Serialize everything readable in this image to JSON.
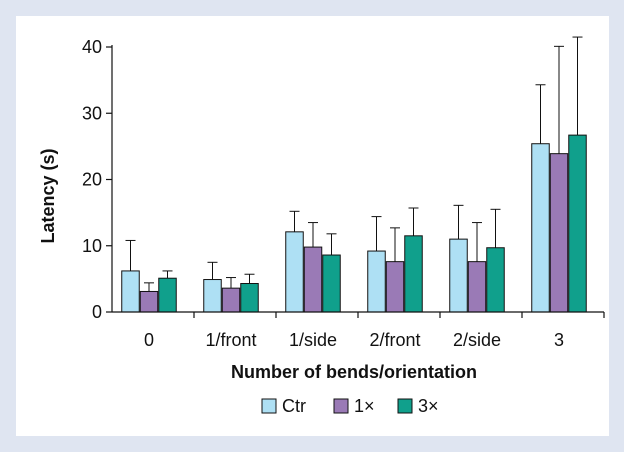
{
  "chart_data": {
    "type": "bar",
    "title": "",
    "xlabel": "Number of bends/orientation",
    "ylabel": "Latency (s)",
    "ylim": [
      0,
      40
    ],
    "yticks": [
      0,
      10,
      20,
      30,
      40
    ],
    "grid": false,
    "legend_position": "bottom",
    "categories": [
      "0",
      "1/front",
      "1/side",
      "2/front",
      "2/side",
      "3"
    ],
    "series": [
      {
        "name": "Ctr",
        "color": "#aee0f4",
        "values": [
          6.2,
          4.9,
          12.1,
          9.2,
          11.0,
          25.4
        ],
        "errors": [
          4.6,
          2.6,
          3.1,
          5.2,
          5.1,
          8.9
        ]
      },
      {
        "name": "1×",
        "color": "#9a7ab6",
        "values": [
          3.1,
          3.6,
          9.8,
          7.6,
          7.6,
          23.9
        ],
        "errors": [
          1.3,
          1.6,
          3.7,
          5.1,
          5.9,
          16.2
        ]
      },
      {
        "name": "3×",
        "color": "#10a08c",
        "values": [
          5.1,
          4.3,
          8.6,
          11.5,
          9.7,
          26.7
        ],
        "errors": [
          1.1,
          1.4,
          3.2,
          4.2,
          5.8,
          14.8
        ]
      }
    ]
  }
}
